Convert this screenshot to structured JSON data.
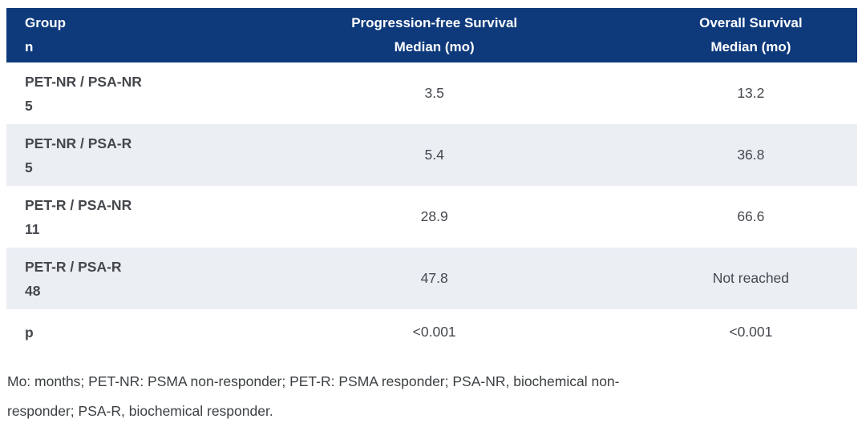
{
  "theme": {
    "header_bg": "#0e3a7c",
    "header_text_color": "#ffffff",
    "alt_row_bg": "#ebeef3",
    "body_text_color": "#45484e",
    "footnote_text_color": "#3c4043"
  },
  "table": {
    "header": {
      "group_line1": "Group",
      "group_line2": "n",
      "pfs_line1": "Progression-free Survival",
      "pfs_line2": "Median (mo)",
      "os_line1": "Overall Survival",
      "os_line2": "Median (mo)"
    },
    "rows": [
      {
        "group": "PET-NR / PSA-NR",
        "n": "5",
        "pfs": "3.5",
        "os": "13.2"
      },
      {
        "group": "PET-NR / PSA-R",
        "n": "5",
        "pfs": "5.4",
        "os": "36.8"
      },
      {
        "group": "PET-R / PSA-NR",
        "n": "11",
        "pfs": "28.9",
        "os": "66.6"
      },
      {
        "group": "PET-R / PSA-R",
        "n": "48",
        "pfs": "47.8",
        "os": "Not reached"
      },
      {
        "group": "p",
        "pfs": "<0.001",
        "os": "<0.001"
      }
    ]
  },
  "footnote": {
    "lines": [
      "Mo: months; PET-NR: PSMA non-responder; PET-R: PSMA responder; PSA-NR, biochemical non-",
      "responder; PSA-R, biochemical responder."
    ]
  }
}
